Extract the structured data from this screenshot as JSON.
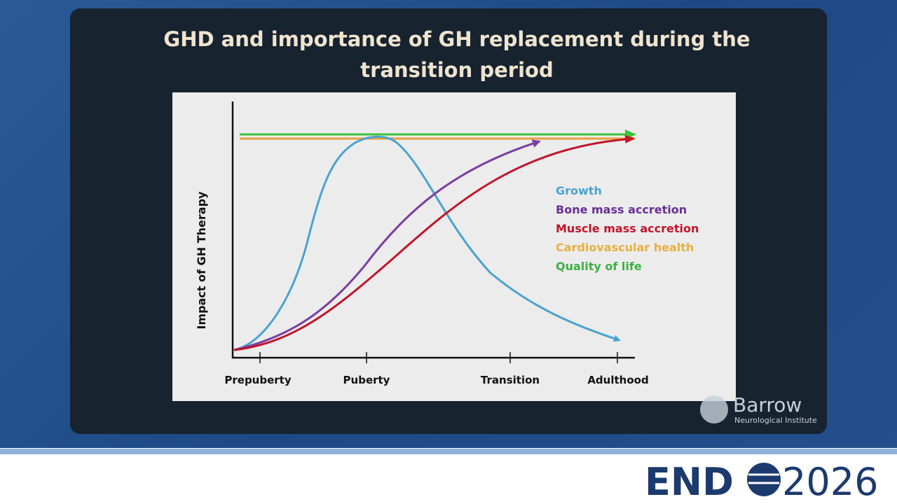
{
  "slide": {
    "title": "GHD and importance of GH replacement during the transition period",
    "diagram": {
      "y_axis_label": "Impact of GH Therapy",
      "x_labels": [
        "Prepuberty",
        "Puberty",
        "Transition",
        "Adulthood"
      ],
      "legend": [
        "Growth",
        "Bone mass accretion",
        "Muscle mass accretion",
        "Cardiovascular health",
        "Quality of life"
      ]
    },
    "watermark": {
      "name": "Barrow",
      "subtitle": "Neurological Institute"
    },
    "footer": {
      "logo_left": "END",
      "logo_right": "2026"
    }
  }
}
